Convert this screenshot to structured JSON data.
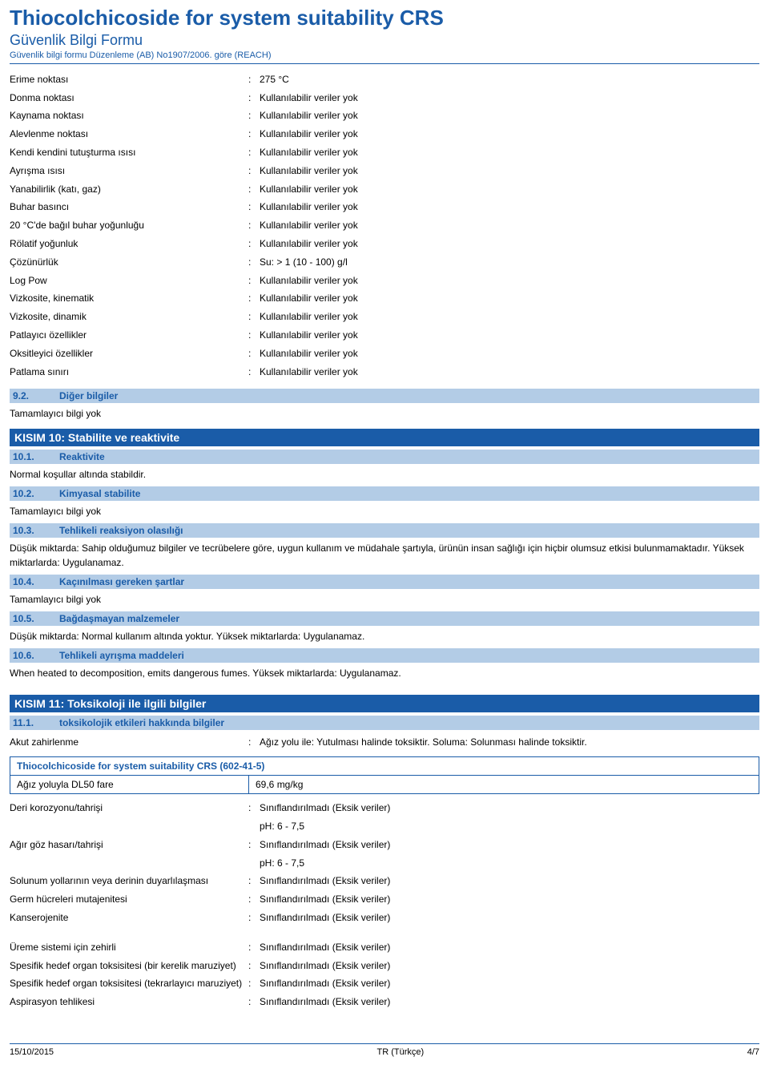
{
  "header": {
    "title": "Thiocolchicoside for system suitability CRS",
    "subtitle": "Güvenlik Bilgi Formu",
    "regline": "Güvenlik bilgi formu Düzenleme (AB) No1907/2006. göre (REACH)"
  },
  "properties": [
    {
      "label": "Erime noktası",
      "value": "275 °C"
    },
    {
      "label": "Donma noktası",
      "value": "Kullanılabilir veriler yok"
    },
    {
      "label": "Kaynama noktası",
      "value": "Kullanılabilir veriler yok"
    },
    {
      "label": "Alevlenme noktası",
      "value": "Kullanılabilir veriler yok"
    },
    {
      "label": "Kendi kendini tutuşturma ısısı",
      "value": "Kullanılabilir veriler yok"
    },
    {
      "label": "Ayrışma ısısı",
      "value": "Kullanılabilir veriler yok"
    },
    {
      "label": "Yanabilirlik (katı, gaz)",
      "value": "Kullanılabilir veriler yok"
    },
    {
      "label": "Buhar basıncı",
      "value": "Kullanılabilir veriler yok"
    },
    {
      "label": "20 °C'de bağıl buhar yoğunluğu",
      "value": "Kullanılabilir veriler yok"
    },
    {
      "label": "Rölatif yoğunluk",
      "value": "Kullanılabilir veriler yok"
    },
    {
      "label": "Çözünürlük",
      "value": "Su: > 1 (10 - 100) g/l"
    },
    {
      "label": "Log Pow",
      "value": "Kullanılabilir veriler yok"
    },
    {
      "label": "Vizkosite, kinematik",
      "value": "Kullanılabilir veriler yok"
    },
    {
      "label": "Vizkosite, dinamik",
      "value": "Kullanılabilir veriler yok"
    },
    {
      "label": "Patlayıcı özellikler",
      "value": "Kullanılabilir veriler yok"
    },
    {
      "label": "Oksitleyici özellikler",
      "value": "Kullanılabilir veriler yok"
    },
    {
      "label": "Patlama sınırı",
      "value": "Kullanılabilir veriler yok"
    }
  ],
  "sec9_2": {
    "num": "9.2.",
    "title": "Diğer bilgiler",
    "body": "Tamamlayıcı bilgi yok"
  },
  "sec10": {
    "bar": "KISIM 10: Stabilite ve reaktivite",
    "s1": {
      "num": "10.1.",
      "title": "Reaktivite",
      "body": "Normal koşullar altında stabildir."
    },
    "s2": {
      "num": "10.2.",
      "title": "Kimyasal stabilite",
      "body": "Tamamlayıcı bilgi yok"
    },
    "s3": {
      "num": "10.3.",
      "title": "Tehlikeli reaksiyon olasılığı",
      "body": "Düşük miktarda: Sahip olduğumuz bilgiler ve tecrübelere göre, uygun kullanım ve müdahale şartıyla, ürünün insan sağlığı için hiçbir olumsuz etkisi bulunmamaktadır. Yüksek miktarlarda: Uygulanamaz."
    },
    "s4": {
      "num": "10.4.",
      "title": "Kaçınılması gereken şartlar",
      "body": "Tamamlayıcı bilgi yok"
    },
    "s5": {
      "num": "10.5.",
      "title": "Bağdaşmayan malzemeler",
      "body": "Düşük miktarda: Normal kullanım altında yoktur. Yüksek miktarlarda: Uygulanamaz."
    },
    "s6": {
      "num": "10.6.",
      "title": "Tehlikeli ayrışma maddeleri",
      "body": "When heated to decomposition, emits dangerous fumes. Yüksek miktarlarda: Uygulanamaz."
    }
  },
  "sec11": {
    "bar": "KISIM 11: Toksikoloji ile ilgili bilgiler",
    "s1": {
      "num": "11.1.",
      "title": "toksikolojik etkileri hakkında bilgiler"
    },
    "akut": {
      "label": "Akut zahirlenme",
      "value": "Ağız yolu ile: Yutulması halinde toksiktir. Soluma: Solunması halinde toksiktir."
    },
    "tableTitle": "Thiocolchicoside for system suitability CRS (602-41-5)",
    "tableRow": {
      "label": "Ağız yoluyla DL50 fare",
      "value": "69,6 mg/kg"
    },
    "rows1": [
      {
        "label": "Deri korozyonu/tahrişi",
        "lines": [
          "Sınıflandırılmadı (Eksik veriler)",
          "pH: 6 - 7,5"
        ]
      },
      {
        "label": "Ağır göz hasarı/tahrişi",
        "lines": [
          "Sınıflandırılmadı (Eksik veriler)",
          "pH: 6 - 7,5"
        ]
      },
      {
        "label": "Solunum yollarının veya derinin duyarlılaşması",
        "lines": [
          "Sınıflandırılmadı (Eksik veriler)"
        ]
      },
      {
        "label": "Germ hücreleri mutajenitesi",
        "lines": [
          "Sınıflandırılmadı (Eksik veriler)"
        ]
      },
      {
        "label": "Kanserojenite",
        "lines": [
          "Sınıflandırılmadı (Eksik veriler)"
        ]
      }
    ],
    "rows2": [
      {
        "label": "Üreme sistemi için zehirli",
        "lines": [
          "Sınıflandırılmadı (Eksik veriler)"
        ]
      },
      {
        "label": "Spesifik hedef organ toksisitesi (bir kerelik maruziyet)",
        "lines": [
          "Sınıflandırılmadı (Eksik veriler)"
        ]
      },
      {
        "label": "Spesifik hedef organ toksisitesi (tekrarlayıcı maruziyet)",
        "lines": [
          "Sınıflandırılmadı (Eksik veriler)"
        ]
      },
      {
        "label": "Aspirasyon tehlikesi",
        "lines": [
          "Sınıflandırılmadı (Eksik veriler)"
        ]
      }
    ]
  },
  "footer": {
    "date": "15/10/2015",
    "lang": "TR (Türkçe)",
    "page": "4/7"
  },
  "colors": {
    "brand": "#1a5ca8",
    "subheadBg": "#b3cce6",
    "text": "#000000",
    "white": "#ffffff"
  }
}
